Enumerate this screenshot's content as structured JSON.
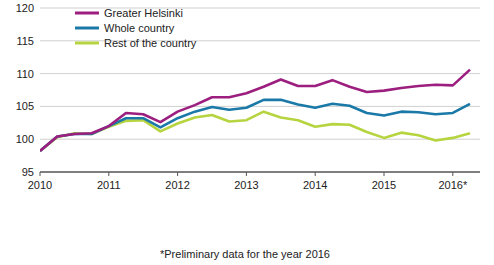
{
  "chart_data": {
    "type": "line",
    "categories": [
      "2010",
      null,
      null,
      null,
      "2011",
      null,
      null,
      null,
      "2012",
      null,
      null,
      null,
      "2013",
      null,
      null,
      null,
      "2014",
      null,
      null,
      null,
      "2015",
      null,
      null,
      null,
      "2016*",
      null
    ],
    "series": [
      {
        "name": "Greater Helsinki",
        "color": "#9c1f80",
        "values": [
          98.2,
          100.4,
          100.8,
          100.9,
          102.0,
          104.0,
          103.8,
          102.6,
          104.2,
          105.2,
          106.4,
          106.4,
          107.0,
          108.0,
          109.1,
          108.1,
          108.1,
          109.0,
          108.0,
          107.2,
          107.4,
          107.8,
          108.1,
          108.3,
          108.2,
          110.6
        ]
      },
      {
        "name": "Whole country",
        "color": "#1b79a8",
        "values": [
          98.2,
          100.4,
          100.8,
          100.8,
          102.0,
          103.2,
          103.2,
          101.8,
          103.2,
          104.2,
          104.9,
          104.5,
          104.8,
          106.0,
          106.0,
          105.3,
          104.8,
          105.4,
          105.1,
          104.0,
          103.6,
          104.2,
          104.1,
          103.8,
          104.0,
          105.4
        ]
      },
      {
        "name": "Rest of the country",
        "color": "#b6d43f",
        "values": [
          98.2,
          100.3,
          100.9,
          100.8,
          101.9,
          102.8,
          102.9,
          101.2,
          102.4,
          103.3,
          103.7,
          102.7,
          102.9,
          104.2,
          103.3,
          102.9,
          101.9,
          102.3,
          102.2,
          101.1,
          100.2,
          101.0,
          100.6,
          99.8,
          100.2,
          100.9
        ]
      }
    ],
    "ylim": [
      95,
      120
    ],
    "yticks": [
      95,
      100,
      105,
      110,
      115,
      120
    ],
    "grid": true,
    "legend": "upper left",
    "annotations": [
      "*Preliminary data for the year 2016"
    ]
  }
}
